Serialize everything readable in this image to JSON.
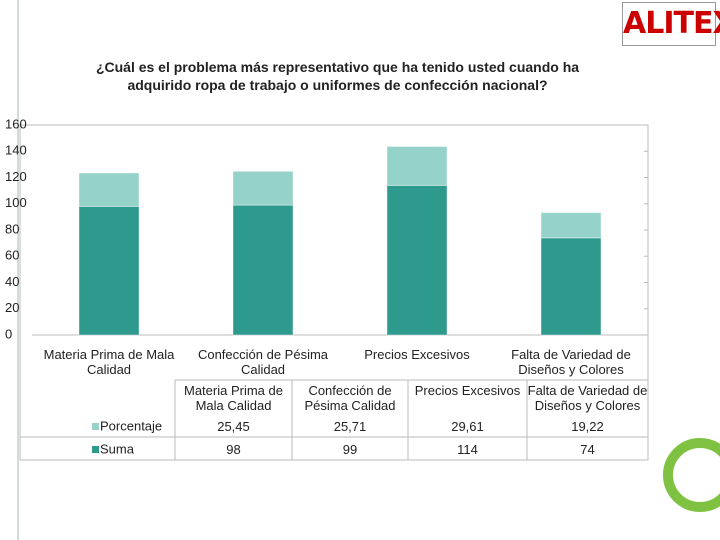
{
  "logo": {
    "text": "ALITEX"
  },
  "chart_data": {
    "type": "bar",
    "stacked": true,
    "title": "¿Cuál es el problema más representativo que ha tenido usted cuando ha adquirido ropa de trabajo o uniformes de confección nacional?",
    "categories": [
      "Materia Prima de Mala Calidad",
      "Confección de Pésima Calidad",
      "Precios Excesivos",
      "Falta de Variedad de Diseños y Colores"
    ],
    "series": [
      {
        "name": "Suma",
        "color": "#2e9a8e",
        "values": [
          98,
          99,
          114,
          74
        ]
      },
      {
        "name": "Porcentaje",
        "color": "#95d3ca",
        "values": [
          25.45,
          25.71,
          29.61,
          19.22
        ],
        "value_labels": [
          "25,45",
          "25,71",
          "29,61",
          "19,22"
        ]
      }
    ],
    "ylim": [
      0,
      160
    ],
    "yticks": [
      0,
      20,
      40,
      60,
      80,
      100,
      120,
      140,
      160
    ],
    "grid": false,
    "data_table": true
  }
}
